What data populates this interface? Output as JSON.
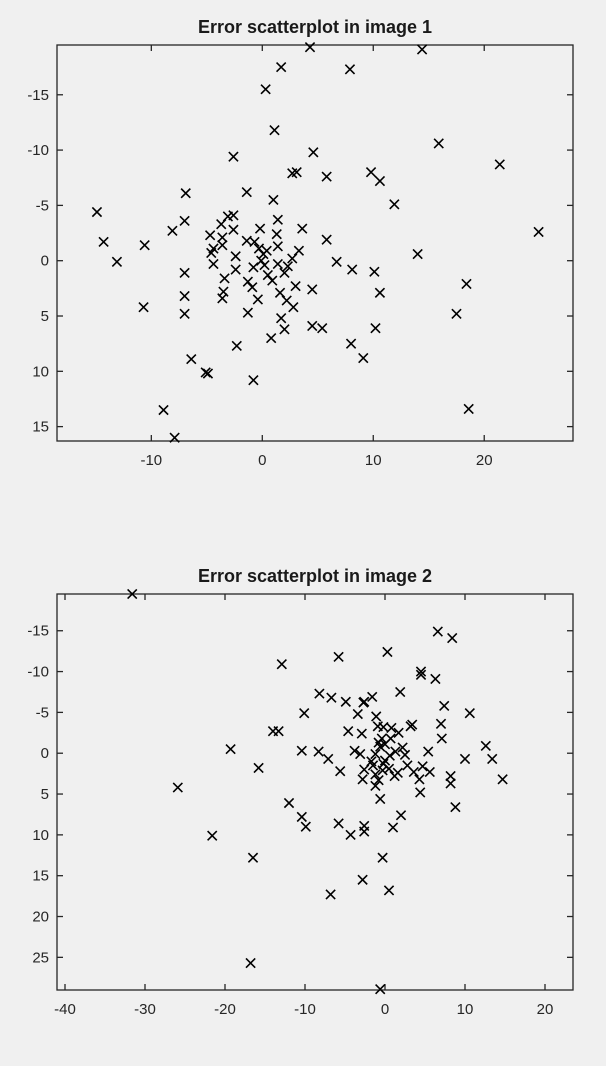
{
  "chart_data": [
    {
      "type": "scatter",
      "title": "Error scatterplot in image 1",
      "xlabel": "",
      "ylabel": "",
      "marker": "x",
      "y_axis_reversed": true,
      "box": true,
      "xlim": [
        -18.5,
        28
      ],
      "ylim": [
        -19.5,
        16.3
      ],
      "xticks": [
        -10,
        0,
        10,
        20
      ],
      "yticks": [
        -15,
        -10,
        -5,
        0,
        5,
        10,
        15
      ],
      "points": [
        [
          4.3,
          -19.3
        ],
        [
          14.4,
          -19.1
        ],
        [
          1.7,
          -17.5
        ],
        [
          7.9,
          -17.3
        ],
        [
          0.3,
          -15.5
        ],
        [
          1.1,
          -11.8
        ],
        [
          15.9,
          -10.6
        ],
        [
          4.6,
          -9.8
        ],
        [
          -2.6,
          -9.4
        ],
        [
          21.4,
          -8.7
        ],
        [
          2.7,
          -7.9
        ],
        [
          3.1,
          -8.0
        ],
        [
          9.8,
          -8.0
        ],
        [
          5.8,
          -7.6
        ],
        [
          10.6,
          -7.2
        ],
        [
          -1.4,
          -6.2
        ],
        [
          -6.9,
          -6.1
        ],
        [
          1.0,
          -5.5
        ],
        [
          11.9,
          -5.1
        ],
        [
          -14.9,
          -4.4
        ],
        [
          -2.6,
          -4.1
        ],
        [
          -3.1,
          -4.0
        ],
        [
          1.4,
          -3.7
        ],
        [
          -7.0,
          -3.6
        ],
        [
          -3.7,
          -3.3
        ],
        [
          -2.6,
          -2.8
        ],
        [
          3.6,
          -2.9
        ],
        [
          -0.2,
          -2.9
        ],
        [
          -8.1,
          -2.7
        ],
        [
          24.9,
          -2.6
        ],
        [
          -4.7,
          -2.3
        ],
        [
          1.3,
          -2.4
        ],
        [
          -3.6,
          -2.1
        ],
        [
          -1.4,
          -1.8
        ],
        [
          -0.7,
          -1.7
        ],
        [
          5.8,
          -1.9
        ],
        [
          -14.3,
          -1.7
        ],
        [
          -10.6,
          -1.4
        ],
        [
          1.4,
          -1.3
        ],
        [
          -3.6,
          -1.4
        ],
        [
          0.4,
          -0.9
        ],
        [
          -4.4,
          -1.1
        ],
        [
          -0.3,
          -1.1
        ],
        [
          3.3,
          -0.9
        ],
        [
          -4.6,
          -0.7
        ],
        [
          14.0,
          -0.6
        ],
        [
          0.1,
          -0.6
        ],
        [
          -2.4,
          -0.4
        ],
        [
          2.7,
          -0.2
        ],
        [
          -0.1,
          0.0
        ],
        [
          -13.1,
          0.1
        ],
        [
          -4.4,
          0.3
        ],
        [
          6.7,
          0.1
        ],
        [
          1.4,
          0.3
        ],
        [
          0.2,
          0.4
        ],
        [
          2.3,
          0.5
        ],
        [
          -0.8,
          0.6
        ],
        [
          -2.4,
          0.8
        ],
        [
          8.1,
          0.8
        ],
        [
          10.1,
          1.0
        ],
        [
          -7.0,
          1.1
        ],
        [
          2.0,
          1.1
        ],
        [
          0.5,
          1.3
        ],
        [
          -3.4,
          1.6
        ],
        [
          0.9,
          1.8
        ],
        [
          -1.3,
          1.9
        ],
        [
          18.4,
          2.1
        ],
        [
          3.0,
          2.3
        ],
        [
          -0.9,
          2.4
        ],
        [
          4.5,
          2.6
        ],
        [
          -3.5,
          2.8
        ],
        [
          10.6,
          2.9
        ],
        [
          1.6,
          2.9
        ],
        [
          -7.0,
          3.2
        ],
        [
          -3.6,
          3.4
        ],
        [
          -0.4,
          3.5
        ],
        [
          2.2,
          3.6
        ],
        [
          2.8,
          4.2
        ],
        [
          -10.7,
          4.2
        ],
        [
          -1.3,
          4.7
        ],
        [
          -7.0,
          4.8
        ],
        [
          17.5,
          4.8
        ],
        [
          1.7,
          5.2
        ],
        [
          4.5,
          5.9
        ],
        [
          5.4,
          6.1
        ],
        [
          2.0,
          6.2
        ],
        [
          10.2,
          6.1
        ],
        [
          0.8,
          7.0
        ],
        [
          -2.3,
          7.7
        ],
        [
          8.0,
          7.5
        ],
        [
          -6.4,
          8.9
        ],
        [
          9.1,
          8.8
        ],
        [
          -5.1,
          10.1
        ],
        [
          -4.9,
          10.2
        ],
        [
          -0.8,
          10.8
        ],
        [
          -8.9,
          13.5
        ],
        [
          18.6,
          13.4
        ],
        [
          -7.9,
          16.0
        ]
      ]
    },
    {
      "type": "scatter",
      "title": "Error scatterplot in image 2",
      "xlabel": "",
      "ylabel": "",
      "marker": "x",
      "y_axis_reversed": true,
      "box": true,
      "xlim": [
        -41,
        23.5
      ],
      "ylim": [
        -19.5,
        29
      ],
      "xticks": [
        -40,
        -30,
        -20,
        -10,
        0,
        10,
        20
      ],
      "yticks": [
        -15,
        -10,
        -5,
        0,
        5,
        10,
        15,
        20,
        25
      ],
      "points": [
        [
          -31.6,
          -19.5
        ],
        [
          6.6,
          -14.9
        ],
        [
          8.4,
          -14.1
        ],
        [
          0.3,
          -12.4
        ],
        [
          -5.8,
          -11.8
        ],
        [
          -12.9,
          -10.9
        ],
        [
          4.5,
          -10.0
        ],
        [
          4.5,
          -9.6
        ],
        [
          6.3,
          -9.1
        ],
        [
          -8.2,
          -7.3
        ],
        [
          1.9,
          -7.5
        ],
        [
          -6.7,
          -6.8
        ],
        [
          -1.6,
          -6.9
        ],
        [
          -2.6,
          -6.3
        ],
        [
          -2.7,
          -6.2
        ],
        [
          -4.9,
          -6.3
        ],
        [
          7.4,
          -5.8
        ],
        [
          -10.1,
          -4.9
        ],
        [
          -3.4,
          -4.8
        ],
        [
          10.6,
          -4.9
        ],
        [
          -1.1,
          -4.5
        ],
        [
          3.4,
          -3.5
        ],
        [
          7.0,
          -3.6
        ],
        [
          3.2,
          -3.3
        ],
        [
          -0.9,
          -3.3
        ],
        [
          -0.2,
          -3.2
        ],
        [
          0.8,
          -3.1
        ],
        [
          -14.0,
          -2.7
        ],
        [
          -13.3,
          -2.7
        ],
        [
          -4.6,
          -2.7
        ],
        [
          -2.9,
          -2.4
        ],
        [
          1.7,
          -2.5
        ],
        [
          -0.4,
          -1.8
        ],
        [
          0.7,
          -1.8
        ],
        [
          7.1,
          -1.8
        ],
        [
          -0.8,
          -1.3
        ],
        [
          0.0,
          -1.1
        ],
        [
          -0.6,
          -0.8
        ],
        [
          2.2,
          -0.7
        ],
        [
          12.6,
          -0.9
        ],
        [
          -19.3,
          -0.5
        ],
        [
          -10.4,
          -0.3
        ],
        [
          -3.8,
          -0.3
        ],
        [
          -8.3,
          -0.2
        ],
        [
          1.3,
          -0.2
        ],
        [
          5.4,
          -0.2
        ],
        [
          -3.1,
          0.1
        ],
        [
          -1.2,
          0.1
        ],
        [
          2.5,
          0.2
        ],
        [
          0.6,
          0.3
        ],
        [
          13.4,
          0.7
        ],
        [
          -7.1,
          0.7
        ],
        [
          10.0,
          0.7
        ],
        [
          -1.7,
          1.0
        ],
        [
          0.0,
          0.9
        ],
        [
          -0.2,
          1.3
        ],
        [
          -1.5,
          1.5
        ],
        [
          2.8,
          1.5
        ],
        [
          4.7,
          1.6
        ],
        [
          -15.8,
          1.8
        ],
        [
          0.5,
          1.9
        ],
        [
          -2.6,
          2.0
        ],
        [
          -0.3,
          2.1
        ],
        [
          1.6,
          2.4
        ],
        [
          3.6,
          2.3
        ],
        [
          5.6,
          2.3
        ],
        [
          -5.6,
          2.2
        ],
        [
          -1.2,
          2.6
        ],
        [
          1.2,
          2.8
        ],
        [
          8.2,
          2.8
        ],
        [
          -2.8,
          3.2
        ],
        [
          4.3,
          3.2
        ],
        [
          14.7,
          3.2
        ],
        [
          -0.8,
          3.3
        ],
        [
          8.2,
          3.7
        ],
        [
          -25.9,
          4.2
        ],
        [
          -1.2,
          4.0
        ],
        [
          4.4,
          4.8
        ],
        [
          -0.6,
          5.6
        ],
        [
          -12.0,
          6.1
        ],
        [
          8.8,
          6.6
        ],
        [
          2.0,
          7.6
        ],
        [
          -10.4,
          7.8
        ],
        [
          -5.8,
          8.6
        ],
        [
          -9.9,
          9.0
        ],
        [
          -2.6,
          8.9
        ],
        [
          1.0,
          9.1
        ],
        [
          -2.6,
          9.6
        ],
        [
          -4.3,
          10.0
        ],
        [
          -21.6,
          10.1
        ],
        [
          -16.5,
          12.8
        ],
        [
          -0.3,
          12.8
        ],
        [
          -2.8,
          15.5
        ],
        [
          0.5,
          16.8
        ],
        [
          -6.8,
          17.3
        ],
        [
          -16.8,
          25.7
        ],
        [
          -0.6,
          28.9
        ]
      ]
    }
  ]
}
